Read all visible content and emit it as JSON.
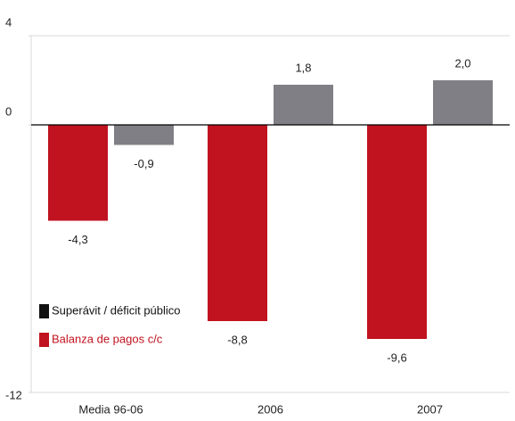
{
  "chart_data": {
    "type": "bar",
    "categories": [
      "Media 96-06",
      "2006",
      "2007"
    ],
    "series": [
      {
        "name": "Balanza de pagos c/c",
        "color": "#c0131f",
        "legend_color": "#c0131f",
        "values": [
          -4.3,
          -8.8,
          -9.6
        ],
        "value_labels": [
          "-4,3",
          "-8,8",
          "-9,6"
        ]
      },
      {
        "name": "Superávit / déficit público",
        "color": "#7f7f85",
        "legend_color": "#111111",
        "values": [
          -0.9,
          1.8,
          2.0
        ],
        "value_labels": [
          "-0,9",
          "1,8",
          "2,0"
        ]
      }
    ],
    "ylim": [
      -12,
      4
    ],
    "yticks": [
      -12,
      0,
      4
    ]
  }
}
